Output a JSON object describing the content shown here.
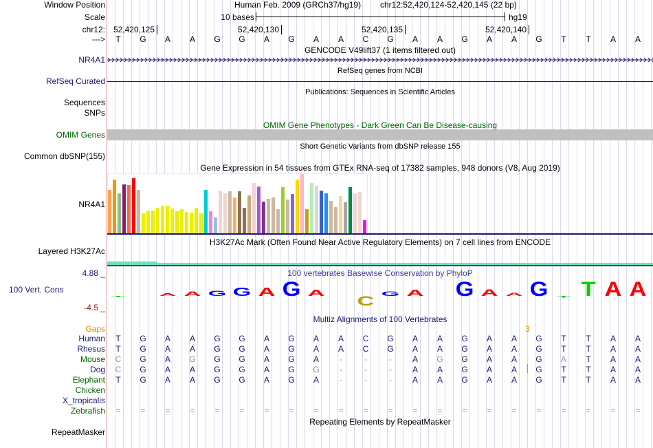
{
  "header": {
    "window_label": "Window Position",
    "assembly": "Human Feb. 2009 (GRCh37/hg19)",
    "position": "chr12:52,420,124-52,420,145 (22 bp)",
    "scale_label": "Scale",
    "scale_text": "10 bases",
    "scale_db": "hg19",
    "chrom_label": "chr12:",
    "ticks": [
      "52,420,125",
      "52,420,130",
      "52,420,135",
      "52,420,140"
    ],
    "strand_label": "--->"
  },
  "sequence": [
    "T",
    "G",
    "A",
    "A",
    "G",
    "G",
    "A",
    "G",
    "A",
    "A",
    "C",
    "G",
    "A",
    "A",
    "G",
    "A",
    "A",
    "G",
    "T",
    "T",
    "A",
    "A"
  ],
  "tracks": {
    "gencode_title": "GENCODE V49lift37 (1 items filtered out)",
    "gencode_gene": "NR4A1",
    "refseq_title": "RefSeq genes from NCBI",
    "refseq_label": "RefSeq Curated",
    "pubs_title": "Publications: Sequences in Scientific Articles",
    "pubs_label": "Sequences",
    "snps_label": "SNPs",
    "omim_title": "OMIM Gene Phenotypes - Dark Green Can Be Disease-causing",
    "omim_label": "OMIM Genes",
    "dbsnp_title": "Short Genetic Variants from dbSNP release 155",
    "dbsnp_label": "Common dbSNP(155)",
    "gtex_title": "Gene Expression in 54 tissues from GTEx RNA-seq of 17382 samples, 948 donors (V8, Aug 2019)",
    "gtex_label": "NR4A1",
    "h3k_title": "H3K27Ac Mark (Often Found Near Active Regulatory Elements) on 7 cell lines from ENCODE",
    "h3k_label": "Layered H3K27Ac",
    "phylop_title": "100 vertebrates Basewise Conservation by PhyloP",
    "phylop_label": "100 Vert. Cons",
    "phylop_max": "4.88 _",
    "phylop_min": "-4.5 _",
    "multiz_title": "Multiz Alignments of 100 Vertebrates",
    "gaps_label": "Gaps",
    "gap_count": "3",
    "rmsk_title": "Repeating Elements by RepeatMasker",
    "rmsk_label": "RepeatMasker"
  },
  "gtex_bars": [
    {
      "v": 73,
      "c": "#FFA54F"
    },
    {
      "v": 91,
      "c": "#EE9A00"
    },
    {
      "v": 68,
      "c": "#8FBC8F"
    },
    {
      "v": 83,
      "c": "#8B1C62"
    },
    {
      "v": 81,
      "c": "#EE6A50"
    },
    {
      "v": 93,
      "c": "#FF0000"
    },
    {
      "v": 73,
      "c": "#CDB79E"
    },
    {
      "v": 34,
      "c": "#EEEE00"
    },
    {
      "v": 38,
      "c": "#EEEE00"
    },
    {
      "v": 38,
      "c": "#EEEE00"
    },
    {
      "v": 43,
      "c": "#EEEE00"
    },
    {
      "v": 47,
      "c": "#EEEE00"
    },
    {
      "v": 46,
      "c": "#EEEE00"
    },
    {
      "v": 42,
      "c": "#EEEE00"
    },
    {
      "v": 37,
      "c": "#EEEE00"
    },
    {
      "v": 41,
      "c": "#EEEE00"
    },
    {
      "v": 36,
      "c": "#EEEE00"
    },
    {
      "v": 35,
      "c": "#EEEE00"
    },
    {
      "v": 43,
      "c": "#EEEE00"
    },
    {
      "v": 34,
      "c": "#EEEE00"
    },
    {
      "v": 73,
      "c": "#00CDCD"
    },
    {
      "v": 37,
      "c": "#EE82EE"
    },
    {
      "v": 27,
      "c": "#9AC0CD"
    },
    {
      "v": 72,
      "c": "#EED5D2"
    },
    {
      "v": 67,
      "c": "#EED5D2"
    },
    {
      "v": 71,
      "c": "#CDB79E"
    },
    {
      "v": 60,
      "c": "#EEB462"
    },
    {
      "v": 71,
      "c": "#8B7355"
    },
    {
      "v": 43,
      "c": "#8B7355"
    },
    {
      "v": 64,
      "c": "#CDAA7D"
    },
    {
      "v": 85,
      "c": "#EED5D2"
    },
    {
      "v": 79,
      "c": "#B452CD"
    },
    {
      "v": 53,
      "c": "#7A378B"
    },
    {
      "v": 58,
      "c": "#CDB79E"
    },
    {
      "v": 60,
      "c": "#CDB79E"
    },
    {
      "v": 41,
      "c": "#CDB79E"
    },
    {
      "v": 78,
      "c": "#9ACD32"
    },
    {
      "v": 57,
      "c": "#CDB79E"
    },
    {
      "v": 66,
      "c": "#7B68EE"
    },
    {
      "v": 91,
      "c": "#FFD700"
    },
    {
      "v": 100,
      "c": "#FFB6C1"
    },
    {
      "v": 41,
      "c": "#CD9B1D"
    },
    {
      "v": 85,
      "c": "#B4EEB4"
    },
    {
      "v": 80,
      "c": "#D9D9D9"
    },
    {
      "v": 72,
      "c": "#3A5FCD"
    },
    {
      "v": 68,
      "c": "#1E90FF"
    },
    {
      "v": 55,
      "c": "#CDB79E"
    },
    {
      "v": 44,
      "c": "#CDB79E"
    },
    {
      "v": 63,
      "c": "#FFD39B"
    },
    {
      "v": 52,
      "c": "#A6A6A6"
    },
    {
      "v": 78,
      "c": "#008B45"
    },
    {
      "v": 68,
      "c": "#EED5D2"
    },
    {
      "v": 70,
      "c": "#EED5D2"
    },
    {
      "v": 22,
      "c": "#FF00FF"
    }
  ],
  "phylop_scores": [
    -0.3,
    0,
    0.7,
    1.3,
    1.5,
    2.4,
    2.4,
    4.1,
    1.7,
    0,
    -2.6,
    1.3,
    1.7,
    0,
    4.1,
    1.9,
    0.9,
    4.1,
    -0.5,
    4.1,
    4.1,
    4.1
  ],
  "base_colors": {
    "A": "#FF0000",
    "C": "#B8A000",
    "G": "#0000FF",
    "T": "#00D000"
  },
  "alignment": [
    {
      "name": "Human",
      "color": "#191970",
      "seq": "TGAAGGAGAACGAAGAAGTTAA",
      "dim": []
    },
    {
      "name": "Rhesus",
      "color": "#191970",
      "seq": "TGAAGGAGAACGAAGAAGTTAA",
      "dim": []
    },
    {
      "name": "Mouse",
      "color": "#006400",
      "seq": "CGAGGGAGA---AGGAAGATAA",
      "dim": [
        0,
        3,
        13,
        18
      ]
    },
    {
      "name": "Dog",
      "color": "#191970",
      "seq": "CGAAGGAGG---AAGAAGTTAA",
      "dim": [
        0,
        8
      ]
    },
    {
      "name": "Elephant",
      "color": "#006400",
      "seq": "TGAAGGAGA---AAGAAGTTAA",
      "dim": []
    },
    {
      "name": "Chicken",
      "color": "#006400",
      "seq": "",
      "dim": []
    },
    {
      "name": "X_tropicalis",
      "color": "#191970",
      "seq": "",
      "dim": []
    },
    {
      "name": "Zebrafish",
      "color": "#006400",
      "seq": "======================",
      "dim": []
    }
  ]
}
